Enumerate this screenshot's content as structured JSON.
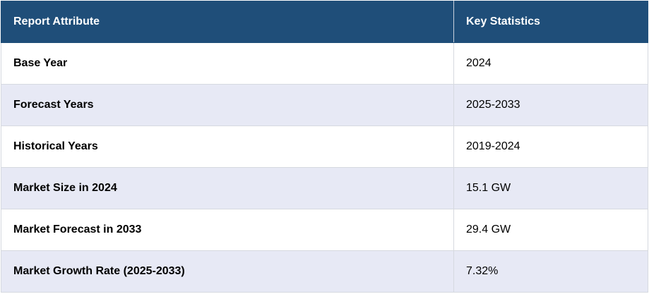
{
  "table": {
    "header": [
      "Report Attribute",
      "Key Statistics"
    ],
    "rows": [
      [
        "Base Year",
        "2024"
      ],
      [
        "Forecast Years",
        "2025-2033"
      ],
      [
        "Historical Years",
        "2019-2024"
      ],
      [
        "Market Size in 2024",
        "15.1 GW"
      ],
      [
        "Market Forecast in 2033",
        "29.4 GW"
      ],
      [
        "Market Growth Rate (2025-2033)",
        "7.32%"
      ]
    ]
  }
}
